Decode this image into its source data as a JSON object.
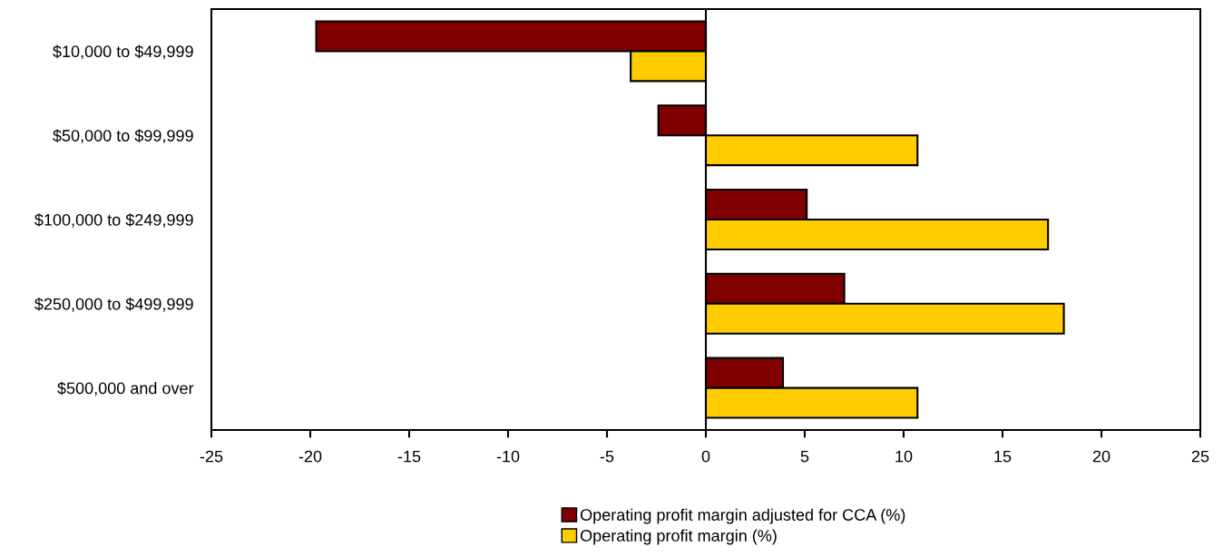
{
  "chart_data": {
    "type": "bar",
    "orientation": "horizontal",
    "categories": [
      "$10,000 to $49,999",
      "$50,000 to $99,999",
      "$100,000 to $249,999",
      "$250,000 to $499,999",
      "$500,000 and over"
    ],
    "series": [
      {
        "name": "Operating profit margin adjusted for CCA (%)",
        "color": "#800000",
        "values": [
          -19.7,
          -2.4,
          5.1,
          7.0,
          3.9
        ]
      },
      {
        "name": "Operating profit margin (%)",
        "color": "#ffcc00",
        "values": [
          -3.8,
          10.7,
          17.3,
          18.1,
          10.7
        ]
      }
    ],
    "xlim": [
      -25,
      25
    ],
    "xticks": [
      -25,
      -20,
      -15,
      -10,
      -5,
      0,
      5,
      10,
      15,
      20,
      25
    ],
    "ref_lines": [
      {
        "axis": "x",
        "value": 0,
        "color": "#000000"
      }
    ],
    "grid": false,
    "legend": "bottom"
  }
}
